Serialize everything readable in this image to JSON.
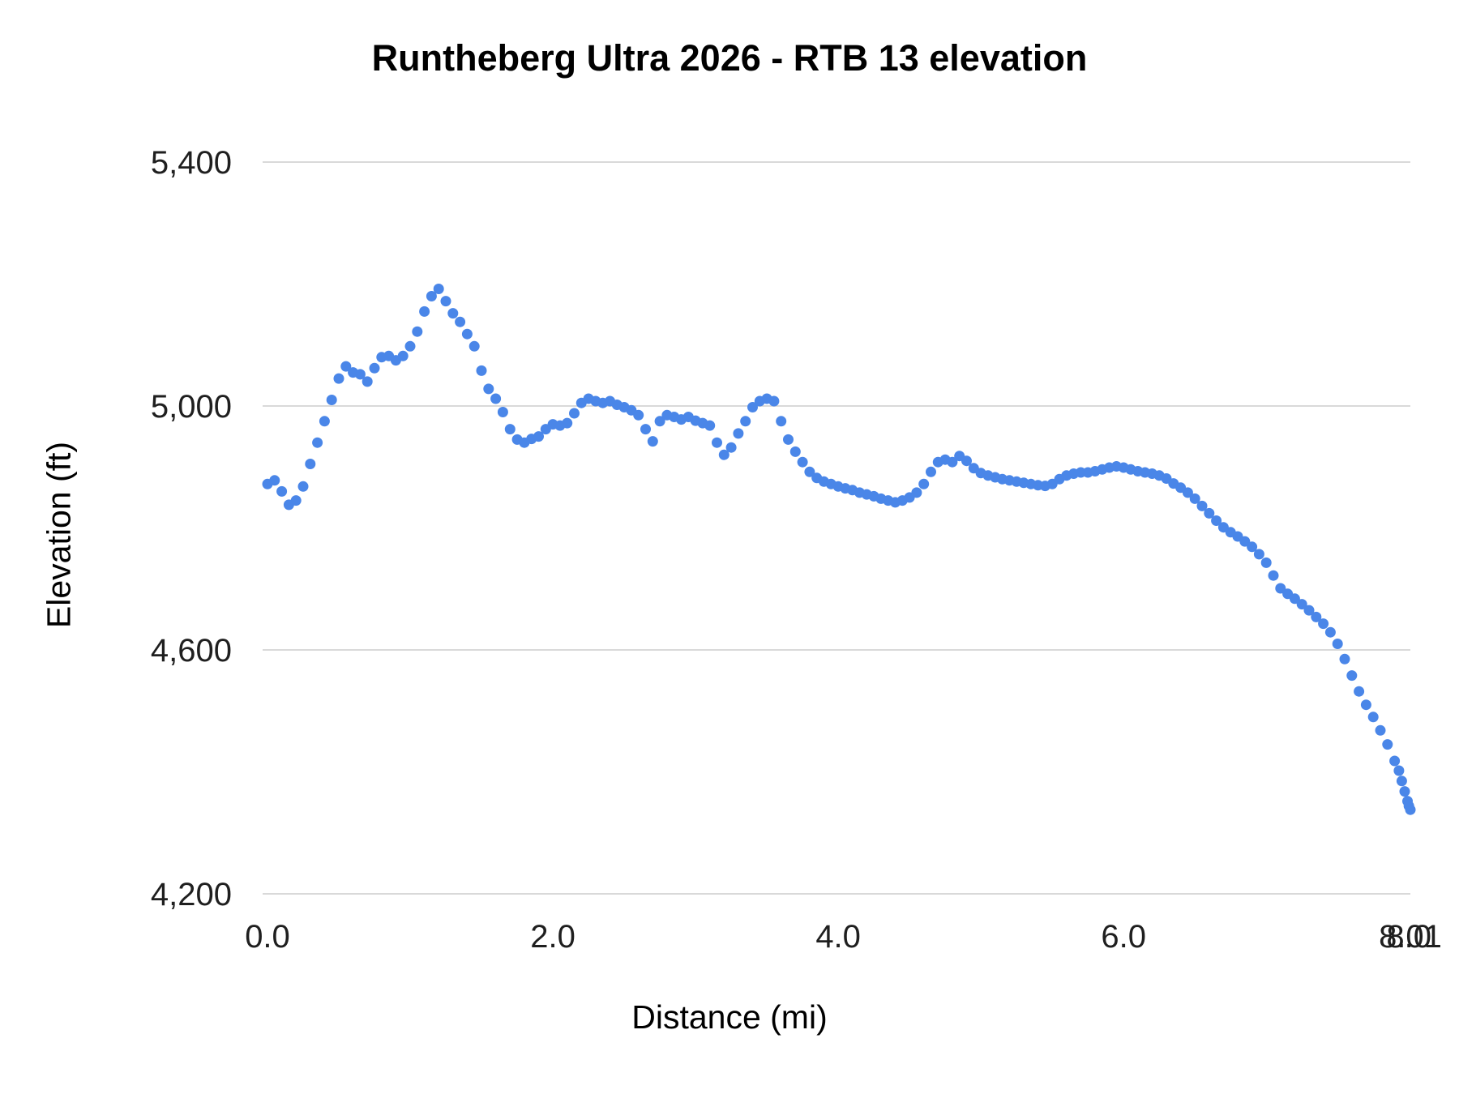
{
  "chart_data": {
    "type": "scatter",
    "title": "Runtheberg Ultra 2026 - RTB 13 elevation",
    "xlabel": "Distance (mi)",
    "ylabel": "Elevation (ft)",
    "xlim": [
      0,
      8.01
    ],
    "ylim": [
      4200,
      5400
    ],
    "grid": "horizontal",
    "legend": "none",
    "point_color": "#4a86e8",
    "grid_color": "#d9d9d9",
    "tick_color": "#1f1f1f",
    "point_radius": 6.5,
    "yticks": [
      {
        "value": 4200,
        "label": "4,200"
      },
      {
        "value": 4600,
        "label": "4,600"
      },
      {
        "value": 5000,
        "label": "5,000"
      },
      {
        "value": 5400,
        "label": "5,400"
      }
    ],
    "xticks": [
      {
        "value": 0,
        "label": "0.0"
      },
      {
        "value": 2,
        "label": "2.0"
      },
      {
        "value": 4,
        "label": "4.0"
      },
      {
        "value": 6,
        "label": "6.0"
      },
      {
        "value": 8,
        "label": "8.0"
      },
      {
        "value": 8.01,
        "label": "8.01"
      }
    ],
    "points": [
      [
        0,
        4872
      ],
      [
        0.05,
        4878
      ],
      [
        0.1,
        4860
      ],
      [
        0.15,
        4838
      ],
      [
        0.2,
        4845
      ],
      [
        0.25,
        4868
      ],
      [
        0.3,
        4905
      ],
      [
        0.35,
        4940
      ],
      [
        0.4,
        4975
      ],
      [
        0.45,
        5010
      ],
      [
        0.5,
        5045
      ],
      [
        0.55,
        5065
      ],
      [
        0.6,
        5055
      ],
      [
        0.65,
        5052
      ],
      [
        0.7,
        5040
      ],
      [
        0.75,
        5062
      ],
      [
        0.8,
        5080
      ],
      [
        0.85,
        5082
      ],
      [
        0.9,
        5075
      ],
      [
        0.95,
        5082
      ],
      [
        1,
        5098
      ],
      [
        1.05,
        5122
      ],
      [
        1.1,
        5155
      ],
      [
        1.15,
        5180
      ],
      [
        1.2,
        5192
      ],
      [
        1.25,
        5172
      ],
      [
        1.3,
        5152
      ],
      [
        1.35,
        5138
      ],
      [
        1.4,
        5118
      ],
      [
        1.45,
        5098
      ],
      [
        1.5,
        5058
      ],
      [
        1.55,
        5028
      ],
      [
        1.6,
        5012
      ],
      [
        1.65,
        4990
      ],
      [
        1.7,
        4962
      ],
      [
        1.75,
        4945
      ],
      [
        1.8,
        4940
      ],
      [
        1.85,
        4946
      ],
      [
        1.9,
        4950
      ],
      [
        1.95,
        4962
      ],
      [
        2,
        4970
      ],
      [
        2.05,
        4968
      ],
      [
        2.1,
        4972
      ],
      [
        2.15,
        4988
      ],
      [
        2.2,
        5005
      ],
      [
        2.25,
        5012
      ],
      [
        2.3,
        5008
      ],
      [
        2.35,
        5005
      ],
      [
        2.4,
        5008
      ],
      [
        2.45,
        5002
      ],
      [
        2.5,
        4998
      ],
      [
        2.55,
        4993
      ],
      [
        2.6,
        4985
      ],
      [
        2.65,
        4962
      ],
      [
        2.7,
        4942
      ],
      [
        2.75,
        4975
      ],
      [
        2.8,
        4985
      ],
      [
        2.85,
        4982
      ],
      [
        2.9,
        4978
      ],
      [
        2.95,
        4982
      ],
      [
        3,
        4976
      ],
      [
        3.05,
        4972
      ],
      [
        3.1,
        4968
      ],
      [
        3.15,
        4940
      ],
      [
        3.2,
        4920
      ],
      [
        3.25,
        4932
      ],
      [
        3.3,
        4955
      ],
      [
        3.35,
        4975
      ],
      [
        3.4,
        4998
      ],
      [
        3.45,
        5008
      ],
      [
        3.5,
        5012
      ],
      [
        3.55,
        5008
      ],
      [
        3.6,
        4975
      ],
      [
        3.65,
        4945
      ],
      [
        3.7,
        4925
      ],
      [
        3.75,
        4908
      ],
      [
        3.8,
        4892
      ],
      [
        3.85,
        4882
      ],
      [
        3.9,
        4876
      ],
      [
        3.95,
        4872
      ],
      [
        4,
        4868
      ],
      [
        4.05,
        4865
      ],
      [
        4.1,
        4862
      ],
      [
        4.15,
        4858
      ],
      [
        4.2,
        4855
      ],
      [
        4.25,
        4852
      ],
      [
        4.3,
        4848
      ],
      [
        4.35,
        4845
      ],
      [
        4.4,
        4842
      ],
      [
        4.45,
        4845
      ],
      [
        4.5,
        4850
      ],
      [
        4.55,
        4858
      ],
      [
        4.6,
        4872
      ],
      [
        4.65,
        4892
      ],
      [
        4.7,
        4908
      ],
      [
        4.75,
        4912
      ],
      [
        4.8,
        4908
      ],
      [
        4.85,
        4918
      ],
      [
        4.9,
        4910
      ],
      [
        4.95,
        4898
      ],
      [
        5,
        4890
      ],
      [
        5.05,
        4886
      ],
      [
        5.1,
        4883
      ],
      [
        5.15,
        4880
      ],
      [
        5.2,
        4878
      ],
      [
        5.25,
        4876
      ],
      [
        5.3,
        4874
      ],
      [
        5.35,
        4872
      ],
      [
        5.4,
        4870
      ],
      [
        5.45,
        4869
      ],
      [
        5.5,
        4872
      ],
      [
        5.55,
        4880
      ],
      [
        5.6,
        4886
      ],
      [
        5.65,
        4889
      ],
      [
        5.7,
        4891
      ],
      [
        5.75,
        4891
      ],
      [
        5.8,
        4893
      ],
      [
        5.85,
        4896
      ],
      [
        5.9,
        4899
      ],
      [
        5.95,
        4901
      ],
      [
        6,
        4899
      ],
      [
        6.05,
        4896
      ],
      [
        6.1,
        4893
      ],
      [
        6.15,
        4891
      ],
      [
        6.2,
        4889
      ],
      [
        6.25,
        4886
      ],
      [
        6.3,
        4881
      ],
      [
        6.35,
        4873
      ],
      [
        6.4,
        4866
      ],
      [
        6.45,
        4858
      ],
      [
        6.5,
        4848
      ],
      [
        6.55,
        4836
      ],
      [
        6.6,
        4824
      ],
      [
        6.65,
        4812
      ],
      [
        6.7,
        4801
      ],
      [
        6.75,
        4793
      ],
      [
        6.8,
        4786
      ],
      [
        6.85,
        4778
      ],
      [
        6.9,
        4769
      ],
      [
        6.95,
        4757
      ],
      [
        7,
        4743
      ],
      [
        7.05,
        4722
      ],
      [
        7.1,
        4701
      ],
      [
        7.15,
        4692
      ],
      [
        7.2,
        4684
      ],
      [
        7.25,
        4675
      ],
      [
        7.3,
        4665
      ],
      [
        7.35,
        4654
      ],
      [
        7.4,
        4643
      ],
      [
        7.45,
        4629
      ],
      [
        7.5,
        4610
      ],
      [
        7.55,
        4585
      ],
      [
        7.6,
        4558
      ],
      [
        7.65,
        4532
      ],
      [
        7.7,
        4510
      ],
      [
        7.75,
        4490
      ],
      [
        7.8,
        4468
      ],
      [
        7.85,
        4445
      ],
      [
        7.9,
        4418
      ],
      [
        7.93,
        4402
      ],
      [
        7.95,
        4385
      ],
      [
        7.97,
        4368
      ],
      [
        7.99,
        4352
      ],
      [
        8,
        4344
      ],
      [
        8.01,
        4338
      ]
    ]
  }
}
